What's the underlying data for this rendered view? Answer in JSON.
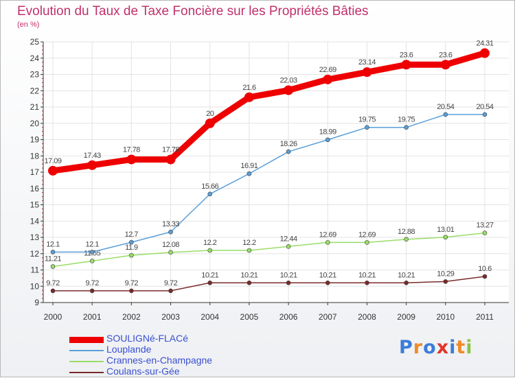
{
  "title": "Evolution du Taux de Taxe Foncière sur les Propriétés Bâties",
  "unit_label": "(en %)",
  "logo": {
    "text": "Proxiti",
    "colors": [
      "#3b7dd8",
      "#f08a24",
      "#3b7dd8",
      "#e2342a",
      "#3b7dd8",
      "#f08a24",
      "#8bc34a"
    ]
  },
  "chart_data": {
    "type": "line",
    "title": "Evolution du Taux de Taxe Foncière sur les Propriétés Bâties",
    "ylabel": "(en %)",
    "x": [
      "2000",
      "2001",
      "2002",
      "2003",
      "2004",
      "2005",
      "2006",
      "2007",
      "2008",
      "2009",
      "2010",
      "2011"
    ],
    "ylim": [
      9,
      25
    ],
    "yticks": [
      9,
      10,
      11,
      12,
      13,
      14,
      15,
      16,
      17,
      18,
      19,
      20,
      21,
      22,
      23,
      24,
      25
    ],
    "grid": true,
    "legend_position": "bottom-left",
    "series": [
      {
        "name": "SOULIGNé-FLACé",
        "color": "#ee0000",
        "values": [
          17.09,
          17.43,
          17.78,
          17.78,
          20,
          21.6,
          22.03,
          22.69,
          23.14,
          23.6,
          23.6,
          24.31
        ],
        "labels": [
          "17.09",
          "17.43",
          "17.78",
          "17.78",
          "20",
          "21.6",
          "22.03",
          "22.69",
          "23.14",
          "23.6",
          "23.6",
          "24.31"
        ]
      },
      {
        "name": "Louplande",
        "color": "#5a9fd8",
        "values": [
          12.1,
          12.1,
          12.7,
          13.33,
          15.66,
          16.91,
          18.26,
          18.99,
          19.75,
          19.75,
          20.54,
          20.54
        ],
        "labels": [
          "12.1",
          "12.1",
          "12.7",
          "13.33",
          "15.66",
          "16.91",
          "18.26",
          "18.99",
          "19.75",
          "19.75",
          "20.54",
          "20.54"
        ]
      },
      {
        "name": "Crannes-en-Champagne",
        "color": "#99dd66",
        "values": [
          11.21,
          11.55,
          11.9,
          12.08,
          12.2,
          12.2,
          12.44,
          12.69,
          12.69,
          12.88,
          13.01,
          13.27
        ],
        "labels": [
          "11.21",
          "11.55",
          "11.9",
          "12.08",
          "12.2",
          "12.2",
          "12.44",
          "12.69",
          "12.69",
          "12.88",
          "13.01",
          "13.27"
        ]
      },
      {
        "name": "Coulans-sur-Gée",
        "color": "#7a2a2a",
        "values": [
          9.72,
          9.72,
          9.72,
          9.72,
          10.21,
          10.21,
          10.21,
          10.21,
          10.21,
          10.21,
          10.29,
          10.6
        ],
        "labels": [
          "9.72",
          "9.72",
          "9.72",
          "9.72",
          "10.21",
          "10.21",
          "10.21",
          "10.21",
          "10.21",
          "10.21",
          "10.29",
          "10.6"
        ]
      }
    ]
  }
}
